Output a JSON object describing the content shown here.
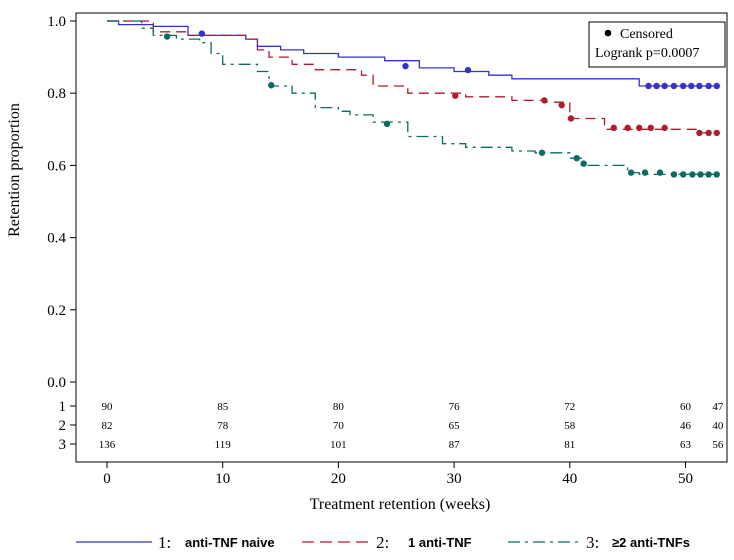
{
  "chart_data": {
    "type": "line",
    "subtype": "kaplan-meier",
    "xlabel": "Treatment retention (weeks)",
    "ylabel": "Retention proportion",
    "xlim": [
      -3,
      53
    ],
    "ylim": [
      -0.15,
      1.0
    ],
    "xticks": [
      0,
      10,
      20,
      30,
      40,
      50
    ],
    "xtick_labels": [
      "0",
      "10",
      "20",
      "30",
      "40",
      "50"
    ],
    "yticks": [
      0.0,
      0.2,
      0.4,
      0.6,
      0.8,
      1.0
    ],
    "ytick_labels": [
      "0.0",
      "0.2",
      "0.4",
      "0.6",
      "0.8",
      "1.0"
    ],
    "info_box": {
      "censored_label": "Censored",
      "logrank": "Logrank p=0.0007"
    },
    "series": [
      {
        "name": "anti-TNF naive",
        "legend_number": "1:",
        "risk_label": "1",
        "color": "#3333cc",
        "dash": "",
        "steps": [
          [
            0,
            1.0
          ],
          [
            1,
            0.99
          ],
          [
            4,
            0.985
          ],
          [
            7,
            0.96
          ],
          [
            12,
            0.95
          ],
          [
            13,
            0.93
          ],
          [
            15,
            0.92
          ],
          [
            17,
            0.91
          ],
          [
            20,
            0.9
          ],
          [
            24,
            0.89
          ],
          [
            27,
            0.87
          ],
          [
            30,
            0.86
          ],
          [
            33,
            0.85
          ],
          [
            35,
            0.84
          ],
          [
            39,
            0.84
          ],
          [
            46,
            0.82
          ],
          [
            53,
            0.82
          ]
        ],
        "censored": [
          [
            8.2,
            0.965
          ],
          [
            25.8,
            0.875
          ],
          [
            31.2,
            0.864
          ],
          [
            46.8,
            0.82
          ],
          [
            47.5,
            0.82
          ],
          [
            48.2,
            0.82
          ],
          [
            49,
            0.82
          ],
          [
            49.8,
            0.82
          ],
          [
            50.5,
            0.82
          ],
          [
            51.2,
            0.82
          ],
          [
            52,
            0.82
          ],
          [
            52.7,
            0.82
          ]
        ]
      },
      {
        "name": "1 anti-TNF",
        "legend_number": "2:",
        "risk_label": "2",
        "color": "#b01c2e",
        "dash": "10,6",
        "steps": [
          [
            0,
            1.0
          ],
          [
            4,
            0.97
          ],
          [
            7,
            0.96
          ],
          [
            12,
            0.95
          ],
          [
            13,
            0.92
          ],
          [
            14,
            0.9
          ],
          [
            16,
            0.88
          ],
          [
            18,
            0.865
          ],
          [
            22,
            0.85
          ],
          [
            23,
            0.82
          ],
          [
            26,
            0.8
          ],
          [
            31,
            0.79
          ],
          [
            35,
            0.78
          ],
          [
            38,
            0.775
          ],
          [
            40,
            0.73
          ],
          [
            43,
            0.7
          ],
          [
            49,
            0.7
          ],
          [
            51,
            0.69
          ],
          [
            53,
            0.69
          ]
        ],
        "censored": [
          [
            30.1,
            0.793
          ],
          [
            37.8,
            0.78
          ],
          [
            39.3,
            0.767
          ],
          [
            40.1,
            0.73
          ],
          [
            43.8,
            0.704
          ],
          [
            45,
            0.704
          ],
          [
            46,
            0.704
          ],
          [
            47,
            0.704
          ],
          [
            48.2,
            0.704
          ],
          [
            51.2,
            0.69
          ],
          [
            52,
            0.69
          ],
          [
            52.7,
            0.69
          ]
        ]
      },
      {
        "name": "≥2 anti-TNFs",
        "legend_number": "3:",
        "risk_label": "3",
        "color": "#0e6b62",
        "dash": "12,5,3,5",
        "steps": [
          [
            0,
            1.0
          ],
          [
            3,
            0.98
          ],
          [
            4,
            0.96
          ],
          [
            6,
            0.95
          ],
          [
            8,
            0.94
          ],
          [
            9,
            0.91
          ],
          [
            10,
            0.88
          ],
          [
            13,
            0.86
          ],
          [
            14,
            0.82
          ],
          [
            16,
            0.8
          ],
          [
            18,
            0.76
          ],
          [
            20,
            0.75
          ],
          [
            21,
            0.74
          ],
          [
            23,
            0.72
          ],
          [
            26,
            0.68
          ],
          [
            29,
            0.66
          ],
          [
            31,
            0.65
          ],
          [
            35,
            0.64
          ],
          [
            37,
            0.635
          ],
          [
            40,
            0.62
          ],
          [
            41,
            0.6
          ],
          [
            45,
            0.58
          ],
          [
            46,
            0.575
          ],
          [
            53,
            0.575
          ]
        ],
        "censored": [
          [
            5.2,
            0.957
          ],
          [
            14.2,
            0.822
          ],
          [
            24.2,
            0.715
          ],
          [
            37.6,
            0.635
          ],
          [
            40.6,
            0.62
          ],
          [
            41.2,
            0.605
          ],
          [
            45.3,
            0.58
          ],
          [
            46.5,
            0.58
          ],
          [
            47.8,
            0.58
          ],
          [
            49,
            0.575
          ],
          [
            49.8,
            0.575
          ],
          [
            50.6,
            0.575
          ],
          [
            51.3,
            0.575
          ],
          [
            52,
            0.575
          ],
          [
            52.7,
            0.575
          ]
        ]
      }
    ],
    "risk_table": {
      "timepoints": [
        0,
        10,
        20,
        30,
        40,
        50,
        52.8
      ],
      "rows": [
        {
          "label": "1",
          "values": [
            "90",
            "85",
            "80",
            "76",
            "72",
            "60",
            "47"
          ]
        },
        {
          "label": "2",
          "values": [
            "82",
            "78",
            "70",
            "65",
            "58",
            "46",
            "40"
          ]
        },
        {
          "label": "3",
          "values": [
            "136",
            "119",
            "101",
            "87",
            "81",
            "63",
            "56"
          ]
        }
      ]
    }
  }
}
